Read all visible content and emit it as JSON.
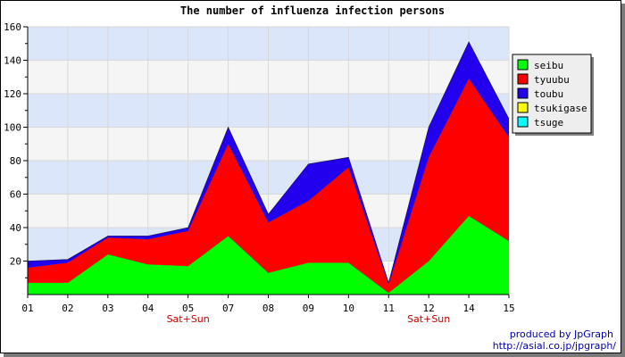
{
  "chart_data": {
    "type": "area",
    "stacked": true,
    "title": "The number of influenza infection persons",
    "categories": [
      "01",
      "02",
      "03",
      "04",
      "05",
      "07",
      "08",
      "09",
      "10",
      "11",
      "12",
      "14",
      "15"
    ],
    "sublabels": {
      "4": "Sat+Sun",
      "10": "Sat+Sun"
    },
    "ylim": [
      0,
      160
    ],
    "yticks": [
      20,
      40,
      60,
      80,
      100,
      120,
      140,
      160
    ],
    "grid": true,
    "legend_position": "right",
    "series": [
      {
        "name": "seibu",
        "color": "#00ff00",
        "values": [
          7,
          7,
          24,
          18,
          17,
          35,
          13,
          19,
          19,
          1,
          20,
          47,
          32
        ]
      },
      {
        "name": "tyuubu",
        "color": "#ff0000",
        "values": [
          9,
          12,
          10,
          15,
          21,
          55,
          30,
          37,
          57,
          5,
          62,
          82,
          62
        ]
      },
      {
        "name": "toubu",
        "color": "#2200ee",
        "values": [
          4,
          2,
          1,
          2,
          2,
          10,
          5,
          22,
          6,
          1,
          18,
          22,
          11
        ]
      },
      {
        "name": "tsukigase",
        "color": "#ffff00",
        "values": [
          0,
          0,
          0,
          0,
          0,
          0,
          0,
          0,
          0,
          0,
          0,
          0,
          0
        ]
      },
      {
        "name": "tsuge",
        "color": "#00ffff",
        "values": [
          0,
          0,
          0,
          0,
          0,
          0,
          0,
          0,
          0,
          0,
          0,
          0,
          0
        ]
      }
    ]
  },
  "footer": {
    "produced_by": "produced by JpGraph",
    "url": "http://asial.co.jp/jpgraph/"
  }
}
